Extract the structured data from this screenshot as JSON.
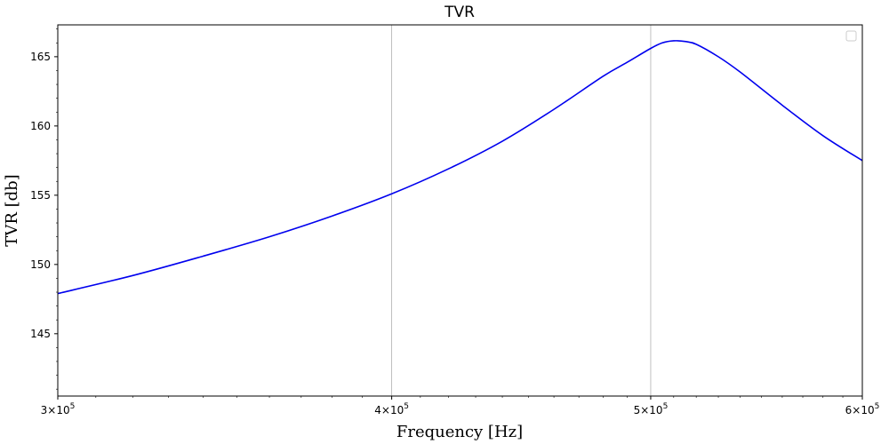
{
  "chart_data": {
    "type": "line",
    "title": "TVR",
    "xlabel": "Frequency [Hz]",
    "ylabel": "TVR [db]",
    "xscale": "log",
    "xlim": [
      300000,
      600000
    ],
    "ylim": [
      140.5,
      167.3
    ],
    "grid": "x-major",
    "legend": {
      "position": "top-right",
      "entries": []
    },
    "x_ticks": [
      {
        "value": 300000,
        "mantissa": "3",
        "base": "10",
        "exp": "5"
      },
      {
        "value": 400000,
        "mantissa": "4",
        "base": "10",
        "exp": "5"
      },
      {
        "value": 500000,
        "mantissa": "5",
        "base": "10",
        "exp": "5"
      },
      {
        "value": 600000,
        "mantissa": "6",
        "base": "10",
        "exp": "5"
      }
    ],
    "y_ticks": [
      {
        "value": 145,
        "label": "145"
      },
      {
        "value": 150,
        "label": "150"
      },
      {
        "value": 155,
        "label": "155"
      },
      {
        "value": 160,
        "label": "160"
      },
      {
        "value": 165,
        "label": "165"
      }
    ],
    "series": [
      {
        "name": "TVR",
        "color": "#0000ee",
        "x": [
          300000,
          320000,
          340000,
          360000,
          380000,
          400000,
          420000,
          440000,
          460000,
          480000,
          490000,
          500000,
          505000,
          510000,
          515000,
          520000,
          530000,
          540000,
          560000,
          580000,
          600000
        ],
        "y": [
          147.9,
          149.2,
          150.6,
          152.0,
          153.5,
          155.1,
          156.9,
          158.9,
          161.2,
          163.6,
          164.6,
          165.6,
          166.0,
          166.15,
          166.1,
          165.9,
          165.0,
          163.9,
          161.5,
          159.3,
          157.5
        ]
      }
    ]
  },
  "colors": {
    "axes": "#000000",
    "grid": "#b0b0b0",
    "line": "#0000ee"
  }
}
